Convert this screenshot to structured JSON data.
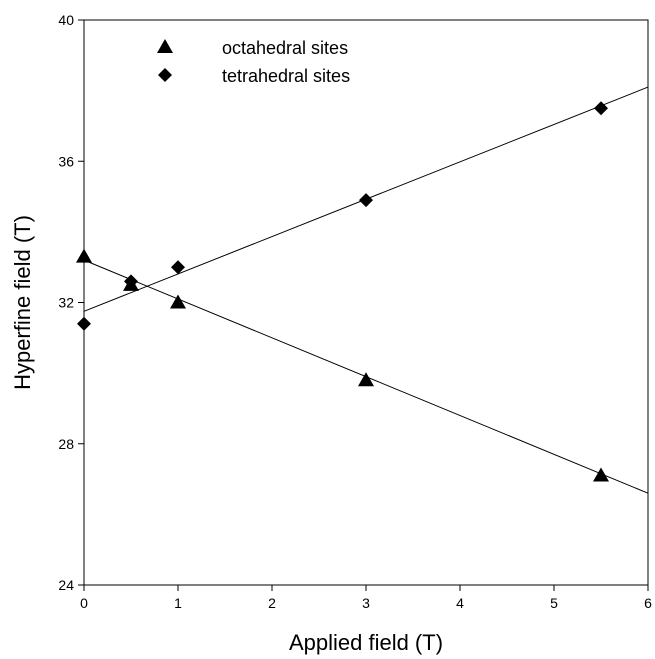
{
  "chart_data": {
    "type": "scatter",
    "title": "",
    "xlabel": "Applied field (T)",
    "ylabel": "Hyperfine field (T)",
    "xlim": [
      0,
      6
    ],
    "ylim": [
      24,
      40
    ],
    "xticks": [
      "0",
      "1",
      "2",
      "3",
      "4",
      "5",
      "6"
    ],
    "yticks": [
      "24",
      "28",
      "32",
      "36",
      "40"
    ],
    "grid": false,
    "legend_position": "top-left",
    "series": [
      {
        "name": "octahedral sites",
        "marker": "triangle",
        "color": "#000000",
        "x": [
          0,
          0.5,
          1,
          3,
          5.5
        ],
        "y": [
          33.3,
          32.5,
          32.0,
          29.8,
          27.1
        ],
        "fit_line": {
          "x": [
            0,
            6
          ],
          "y": [
            33.2,
            26.6
          ]
        }
      },
      {
        "name": "tetrahedral sites",
        "marker": "diamond",
        "color": "#000000",
        "x": [
          0,
          0.5,
          1,
          3,
          5.5
        ],
        "y": [
          31.4,
          32.6,
          33.0,
          34.9,
          37.5
        ],
        "fit_line": {
          "x": [
            0,
            6
          ],
          "y": [
            31.75,
            38.1
          ]
        }
      }
    ]
  }
}
